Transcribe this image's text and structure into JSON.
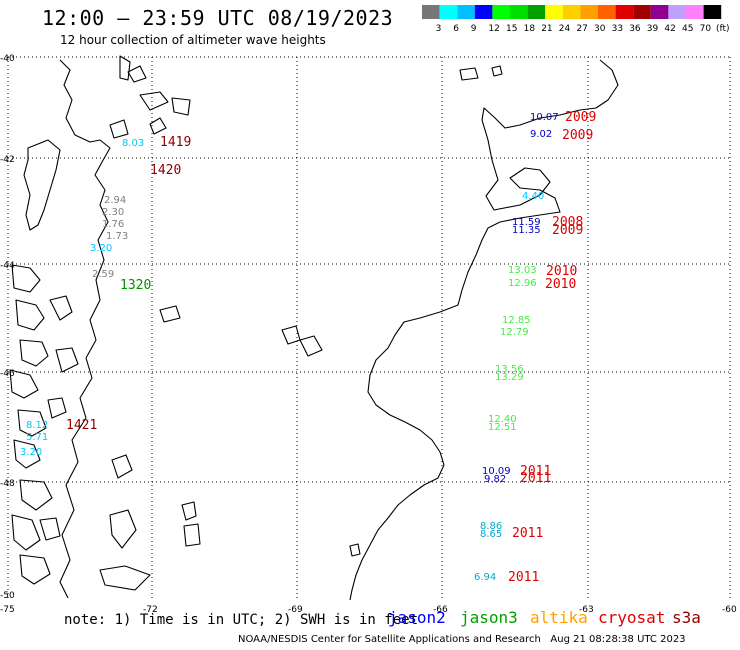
{
  "header": {
    "title": "12:00 — 23:59 UTC 08/19/2023",
    "subtitle": "12 hour collection of altimeter wave heights"
  },
  "colorbar": {
    "colors": [
      "#777777",
      "#00ffff",
      "#00c0ff",
      "#0000ff",
      "#00ff00",
      "#00e000",
      "#00a000",
      "#ffff00",
      "#ffd000",
      "#ffa000",
      "#ff6000",
      "#e00000",
      "#a00000",
      "#900090",
      "#c0a0ff",
      "#ff80ff",
      "#000000"
    ],
    "labels": [
      "3",
      "6",
      "9",
      "12",
      "15",
      "18",
      "21",
      "24",
      "27",
      "30",
      "33",
      "36",
      "39",
      "42",
      "45",
      "70"
    ],
    "unit": "(ft)"
  },
  "axes": {
    "lat_labels": [
      "-40",
      "-42",
      "-44",
      "-46",
      "-48",
      "-50"
    ],
    "lon_labels": [
      "-75",
      "-72",
      "-69",
      "-66",
      "-63",
      "-60"
    ]
  },
  "wave_heights": [
    {
      "text": "10.07",
      "color": "#0000c8"
    },
    {
      "text": "9.02",
      "color": "#0000c8"
    },
    {
      "text": "8.03",
      "color": "#00c8ff"
    },
    {
      "text": "2.94",
      "color": "#808080"
    },
    {
      "text": "2.30",
      "color": "#808080"
    },
    {
      "text": "1.76",
      "color": "#808080"
    },
    {
      "text": "1.73",
      "color": "#808080"
    },
    {
      "text": "3.20",
      "color": "#00c8ff"
    },
    {
      "text": "2.59",
      "color": "#808080"
    },
    {
      "text": "4.40",
      "color": "#00c8ff"
    },
    {
      "text": "11.59",
      "color": "#0000c8"
    },
    {
      "text": "11.35",
      "color": "#0000c8"
    },
    {
      "text": "13.03",
      "color": "#44ee44"
    },
    {
      "text": "12.96",
      "color": "#44ee44"
    },
    {
      "text": "12.85",
      "color": "#44ee44"
    },
    {
      "text": "12.79",
      "color": "#44ee44"
    },
    {
      "text": "13.56",
      "color": "#44ee44"
    },
    {
      "text": "13.29",
      "color": "#44ee44"
    },
    {
      "text": "12.40",
      "color": "#44ee44"
    },
    {
      "text": "12.51",
      "color": "#44ee44"
    },
    {
      "text": "10.09",
      "color": "#0000c8"
    },
    {
      "text": "9.82",
      "color": "#0000c8"
    },
    {
      "text": "8.86",
      "color": "#00aacc"
    },
    {
      "text": "8.65",
      "color": "#00aacc"
    },
    {
      "text": "6.94",
      "color": "#00aacc"
    },
    {
      "text": "8.12",
      "color": "#00c8ff"
    },
    {
      "text": "5.71",
      "color": "#00c8ff"
    },
    {
      "text": "3.20",
      "color": "#00c8ff"
    }
  ],
  "pass_times": [
    {
      "text": "2009",
      "color": "#e00000"
    },
    {
      "text": "2009",
      "color": "#e00000"
    },
    {
      "text": "1419",
      "color": "#900000"
    },
    {
      "text": "1420",
      "color": "#900000"
    },
    {
      "text": "2008",
      "color": "#e00000"
    },
    {
      "text": "2009",
      "color": "#e00000"
    },
    {
      "text": "2010",
      "color": "#e00000"
    },
    {
      "text": "2010",
      "color": "#e00000"
    },
    {
      "text": "1320",
      "color": "#009000"
    },
    {
      "text": "2011",
      "color": "#e00000"
    },
    {
      "text": "2011",
      "color": "#e00000"
    },
    {
      "text": "2011",
      "color": "#e00000"
    },
    {
      "text": "2011",
      "color": "#e00000"
    },
    {
      "text": "1421",
      "color": "#900000"
    }
  ],
  "footer": {
    "note": "note: 1) Time is in UTC; 2) SWH is in feet",
    "satellites": [
      {
        "name": "jason2",
        "color": "#0000ff"
      },
      {
        "name": "jason3",
        "color": "#00a000"
      },
      {
        "name": "altika",
        "color": "#ffa000"
      },
      {
        "name": "cryosat",
        "color": "#e00000"
      },
      {
        "name": "s3a",
        "color": "#900000"
      }
    ],
    "credits": "NOAA/NESDIS Center for Satellite Applications and Research   Aug 21 08:28:38 UTC 2023"
  }
}
